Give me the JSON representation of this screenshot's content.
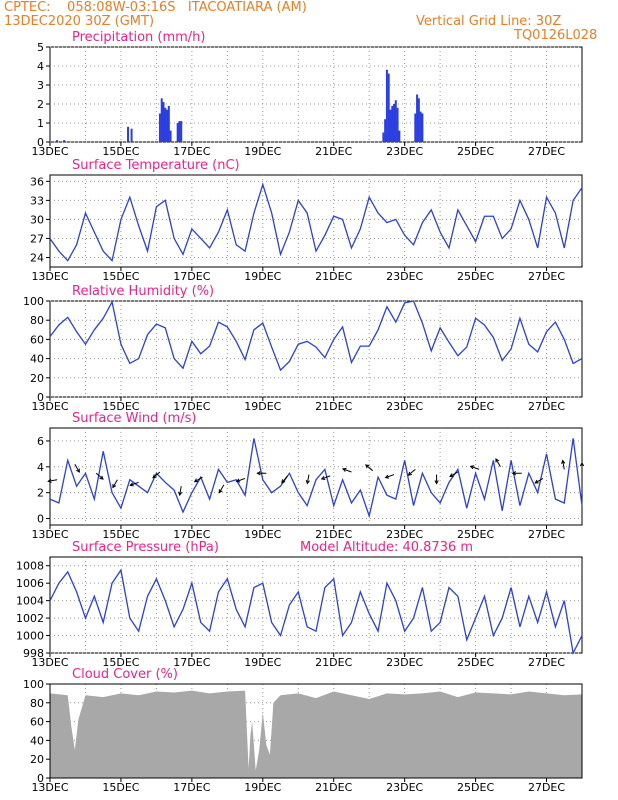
{
  "header": {
    "line1": "CPTEC:    058:08W-03:16S   ITACOATIARA (AM)",
    "line2": "13DEC2020 30Z (GMT)",
    "right1": "Vertical Grid Line: 30Z",
    "right2": "TQ0126L028"
  },
  "colors": {
    "line": "#2b3fe0",
    "bar": "#2b3fe0",
    "cloud": "#a8a8a8",
    "title": "#ee2288",
    "header": "#ee7c22"
  },
  "chart_data": [
    {
      "type": "bar",
      "title": "Precipitation  (mm/h)",
      "ylim": [
        0,
        5
      ],
      "yticks": [
        0,
        1,
        2,
        3,
        4,
        5
      ],
      "x_start": "13DEC",
      "x_end_days": 15,
      "xtick_labels": [
        "13DEC",
        "15DEC",
        "17DEC",
        "19DEC",
        "21DEC",
        "23DEC",
        "25DEC",
        "27DEC"
      ],
      "x": [
        0.2,
        0.4,
        2.2,
        2.3,
        3.1,
        3.15,
        3.2,
        3.25,
        3.3,
        3.35,
        3.4,
        3.6,
        3.65,
        3.7,
        9.4,
        9.45,
        9.5,
        9.55,
        9.6,
        9.65,
        9.7,
        9.75,
        9.8,
        9.85,
        10.3,
        10.35,
        10.4,
        10.45,
        10.5
      ],
      "values": [
        0.1,
        0.1,
        0.8,
        0.7,
        1.5,
        2.3,
        2.1,
        1.8,
        1.7,
        1.9,
        0.6,
        1.0,
        1.1,
        1.1,
        0.5,
        1.2,
        3.8,
        3.6,
        1.7,
        1.9,
        2.0,
        2.2,
        1.8,
        0.6,
        1.5,
        2.5,
        2.3,
        1.6,
        1.5
      ]
    },
    {
      "type": "line",
      "title": "Surface Temperature (nC)",
      "ylim": [
        22.5,
        37
      ],
      "yticks": [
        24,
        27,
        30,
        33,
        36
      ],
      "xtick_labels": [
        "13DEC",
        "15DEC",
        "17DEC",
        "19DEC",
        "21DEC",
        "23DEC",
        "25DEC",
        "27DEC"
      ],
      "x": [
        0,
        0.25,
        0.5,
        0.75,
        1,
        1.25,
        1.5,
        1.75,
        2,
        2.25,
        2.5,
        2.75,
        3,
        3.25,
        3.5,
        3.75,
        4,
        4.25,
        4.5,
        4.75,
        5,
        5.25,
        5.5,
        5.75,
        6,
        6.25,
        6.5,
        6.75,
        7,
        7.25,
        7.5,
        7.75,
        8,
        8.25,
        8.5,
        8.75,
        9,
        9.25,
        9.5,
        9.75,
        10,
        10.25,
        10.5,
        10.75,
        11,
        11.25,
        11.5,
        11.75,
        12,
        12.25,
        12.5,
        12.75,
        13,
        13.25,
        13.5,
        13.75,
        14,
        14.25,
        14.5,
        14.75,
        15
      ],
      "values": [
        27,
        25,
        23.5,
        26,
        31,
        28,
        25,
        23.5,
        30,
        33.5,
        29,
        25,
        32,
        33,
        27,
        24.5,
        28.5,
        27,
        25.5,
        28,
        31.5,
        26,
        25,
        31,
        35.5,
        31,
        24.5,
        28,
        33,
        31,
        25,
        27.5,
        30.5,
        30,
        25.5,
        28.5,
        33.5,
        31,
        29.5,
        30,
        27.5,
        26,
        29.5,
        31.5,
        28,
        25.5,
        31.5,
        29,
        26.5,
        30.5,
        30.5,
        27,
        28.5,
        33,
        30,
        25.5,
        33.5,
        31,
        25.5,
        33,
        35
      ]
    },
    {
      "type": "line",
      "title": "Relative Humidity  (%)",
      "ylim": [
        0,
        100
      ],
      "yticks": [
        0,
        20,
        40,
        60,
        80,
        100
      ],
      "xtick_labels": [
        "13DEC",
        "15DEC",
        "17DEC",
        "19DEC",
        "21DEC",
        "23DEC",
        "25DEC",
        "27DEC"
      ],
      "x": [
        0,
        0.25,
        0.5,
        0.75,
        1,
        1.25,
        1.5,
        1.75,
        2,
        2.25,
        2.5,
        2.75,
        3,
        3.25,
        3.5,
        3.75,
        4,
        4.25,
        4.5,
        4.75,
        5,
        5.25,
        5.5,
        5.75,
        6,
        6.25,
        6.5,
        6.75,
        7,
        7.25,
        7.5,
        7.75,
        8,
        8.25,
        8.5,
        8.75,
        9,
        9.25,
        9.5,
        9.75,
        10,
        10.25,
        10.5,
        10.75,
        11,
        11.25,
        11.5,
        11.75,
        12,
        12.25,
        12.5,
        12.75,
        13,
        13.25,
        13.5,
        13.75,
        14,
        14.25,
        14.5,
        14.75,
        15
      ],
      "values": [
        63,
        75,
        83,
        68,
        55,
        70,
        82,
        99,
        55,
        35,
        40,
        65,
        76,
        72,
        40,
        30,
        58,
        45,
        53,
        78,
        73,
        58,
        39,
        70,
        77,
        52,
        28,
        37,
        55,
        58,
        52,
        41,
        60,
        73,
        36,
        53,
        53,
        70,
        94,
        78,
        98,
        100,
        77,
        48,
        72,
        57,
        43,
        52,
        82,
        75,
        62,
        38,
        50,
        82,
        55,
        47,
        68,
        78,
        60,
        35,
        40
      ]
    },
    {
      "type": "line",
      "title": "Surface Wind  (m/s)",
      "ylim": [
        -0.5,
        7
      ],
      "yticks": [
        0,
        2,
        4,
        6
      ],
      "xtick_labels": [
        "13DEC",
        "15DEC",
        "17DEC",
        "19DEC",
        "21DEC",
        "23DEC",
        "25DEC",
        "27DEC"
      ],
      "x": [
        0,
        0.25,
        0.5,
        0.75,
        1,
        1.25,
        1.5,
        1.75,
        2,
        2.25,
        2.5,
        2.75,
        3,
        3.25,
        3.5,
        3.75,
        4,
        4.25,
        4.5,
        4.75,
        5,
        5.25,
        5.5,
        5.75,
        6,
        6.25,
        6.5,
        6.75,
        7,
        7.25,
        7.5,
        7.75,
        8,
        8.25,
        8.5,
        8.75,
        9,
        9.25,
        9.5,
        9.75,
        10,
        10.25,
        10.5,
        10.75,
        11,
        11.25,
        11.5,
        11.75,
        12,
        12.25,
        12.5,
        12.75,
        13,
        13.25,
        13.5,
        13.75,
        14,
        14.25,
        14.5,
        14.75,
        15
      ],
      "values": [
        1.5,
        1.2,
        4.5,
        2.5,
        3.5,
        1.5,
        5.2,
        2,
        0.8,
        3,
        2.5,
        2,
        3.5,
        2.8,
        2.2,
        0.5,
        2,
        3.2,
        1.5,
        3.8,
        2.8,
        3,
        1.8,
        6.2,
        3,
        2,
        2.5,
        3.5,
        2,
        1,
        3,
        3.8,
        1,
        3,
        1.2,
        2.2,
        0.2,
        3.2,
        1.8,
        1.5,
        4.5,
        1,
        3.5,
        2,
        1.2,
        2.8,
        3.8,
        0.8,
        3.5,
        1.5,
        4.5,
        0.6,
        4.5,
        1,
        3.5,
        2,
        5,
        1.5,
        1.2,
        6.2,
        1
      ],
      "arrows_x": [
        0.2,
        0.7,
        1.3,
        1.9,
        2.5,
        3.1,
        3.7,
        4.3,
        4.9,
        5.5,
        6.1,
        6.7,
        7.3,
        7.9,
        8.5,
        9.1,
        9.7,
        10.3,
        10.9,
        11.5,
        12.1,
        12.7,
        13.3,
        13.9,
        14.5,
        15.0
      ],
      "arrows_y": [
        3.0,
        4.2,
        3.5,
        3.0,
        2.8,
        3.6,
        2.5,
        3.2,
        2.6,
        3.1,
        3.5,
        3.3,
        3.4,
        3.3,
        3.6,
        3.7,
        3.4,
        3.8,
        3.4,
        3.6,
        3.8,
        4.0,
        3.5,
        3.1,
        3.8,
        3.6
      ],
      "arrows_dir_deg": [
        190,
        300,
        320,
        240,
        200,
        220,
        260,
        210,
        240,
        200,
        180,
        230,
        260,
        200,
        160,
        140,
        200,
        220,
        270,
        210,
        160,
        120,
        180,
        210,
        100,
        90
      ]
    },
    {
      "type": "line",
      "title": "Surface Pressure (hPa)",
      "annotation": "Model Altitude: 40.8736  m",
      "ylim": [
        998,
        1009
      ],
      "yticks": [
        998,
        1000,
        1002,
        1004,
        1006,
        1008
      ],
      "xtick_labels": [
        "13DEC",
        "15DEC",
        "17DEC",
        "19DEC",
        "21DEC",
        "23DEC",
        "25DEC",
        "27DEC"
      ],
      "x": [
        0,
        0.25,
        0.5,
        0.75,
        1,
        1.25,
        1.5,
        1.75,
        2,
        2.25,
        2.5,
        2.75,
        3,
        3.25,
        3.5,
        3.75,
        4,
        4.25,
        4.5,
        4.75,
        5,
        5.25,
        5.5,
        5.75,
        6,
        6.25,
        6.5,
        6.75,
        7,
        7.25,
        7.5,
        7.75,
        8,
        8.25,
        8.5,
        8.75,
        9,
        9.25,
        9.5,
        9.75,
        10,
        10.25,
        10.5,
        10.75,
        11,
        11.25,
        11.5,
        11.75,
        12,
        12.25,
        12.5,
        12.75,
        13,
        13.25,
        13.5,
        13.75,
        14,
        14.25,
        14.5,
        14.75,
        15
      ],
      "values": [
        1004,
        1006,
        1007.3,
        1005,
        1002,
        1004.5,
        1001.5,
        1006,
        1007.5,
        1002,
        1000.5,
        1004.5,
        1006.5,
        1004,
        1001,
        1003,
        1006,
        1001.5,
        1000.5,
        1005,
        1006.5,
        1003,
        1001,
        1005.5,
        1006,
        1001.5,
        1000,
        1003.5,
        1005,
        1001,
        1000.5,
        1005.5,
        1006.5,
        1000,
        1001.5,
        1005,
        1002.5,
        1000.5,
        1006,
        1004,
        1000.5,
        1002,
        1005.5,
        1000.5,
        1001.5,
        1005.5,
        1004.5,
        999.5,
        1002,
        1004.5,
        1000,
        1002,
        1005.5,
        1001,
        1004.5,
        1001.5,
        1005,
        1001,
        1004,
        998,
        1000
      ]
    },
    {
      "type": "area",
      "title": "Cloud Cover  (%)",
      "ylim": [
        0,
        100
      ],
      "yticks": [
        0,
        20,
        40,
        60,
        80,
        100
      ],
      "xtick_labels": [
        "13DEC",
        "15DEC",
        "17DEC",
        "19DEC",
        "21DEC",
        "23DEC",
        "25DEC",
        "27DEC"
      ],
      "x": [
        0,
        0.5,
        0.6,
        0.7,
        0.8,
        1,
        1.5,
        2,
        2.5,
        3,
        3.5,
        4,
        4.5,
        5,
        5.5,
        5.6,
        5.65,
        5.7,
        5.8,
        5.9,
        6,
        6.1,
        6.2,
        6.3,
        6.5,
        7,
        7.5,
        8,
        8.5,
        9,
        9.5,
        10,
        10.5,
        11,
        11.5,
        12,
        12.5,
        13,
        13.5,
        14,
        14.5,
        15
      ],
      "values": [
        90,
        88,
        55,
        30,
        62,
        88,
        86,
        90,
        88,
        92,
        91,
        93,
        90,
        92,
        93,
        10,
        45,
        60,
        8,
        30,
        70,
        35,
        25,
        80,
        88,
        90,
        85,
        92,
        88,
        84,
        90,
        89,
        90,
        92,
        86,
        91,
        90,
        89,
        92,
        90,
        88,
        89
      ]
    }
  ]
}
